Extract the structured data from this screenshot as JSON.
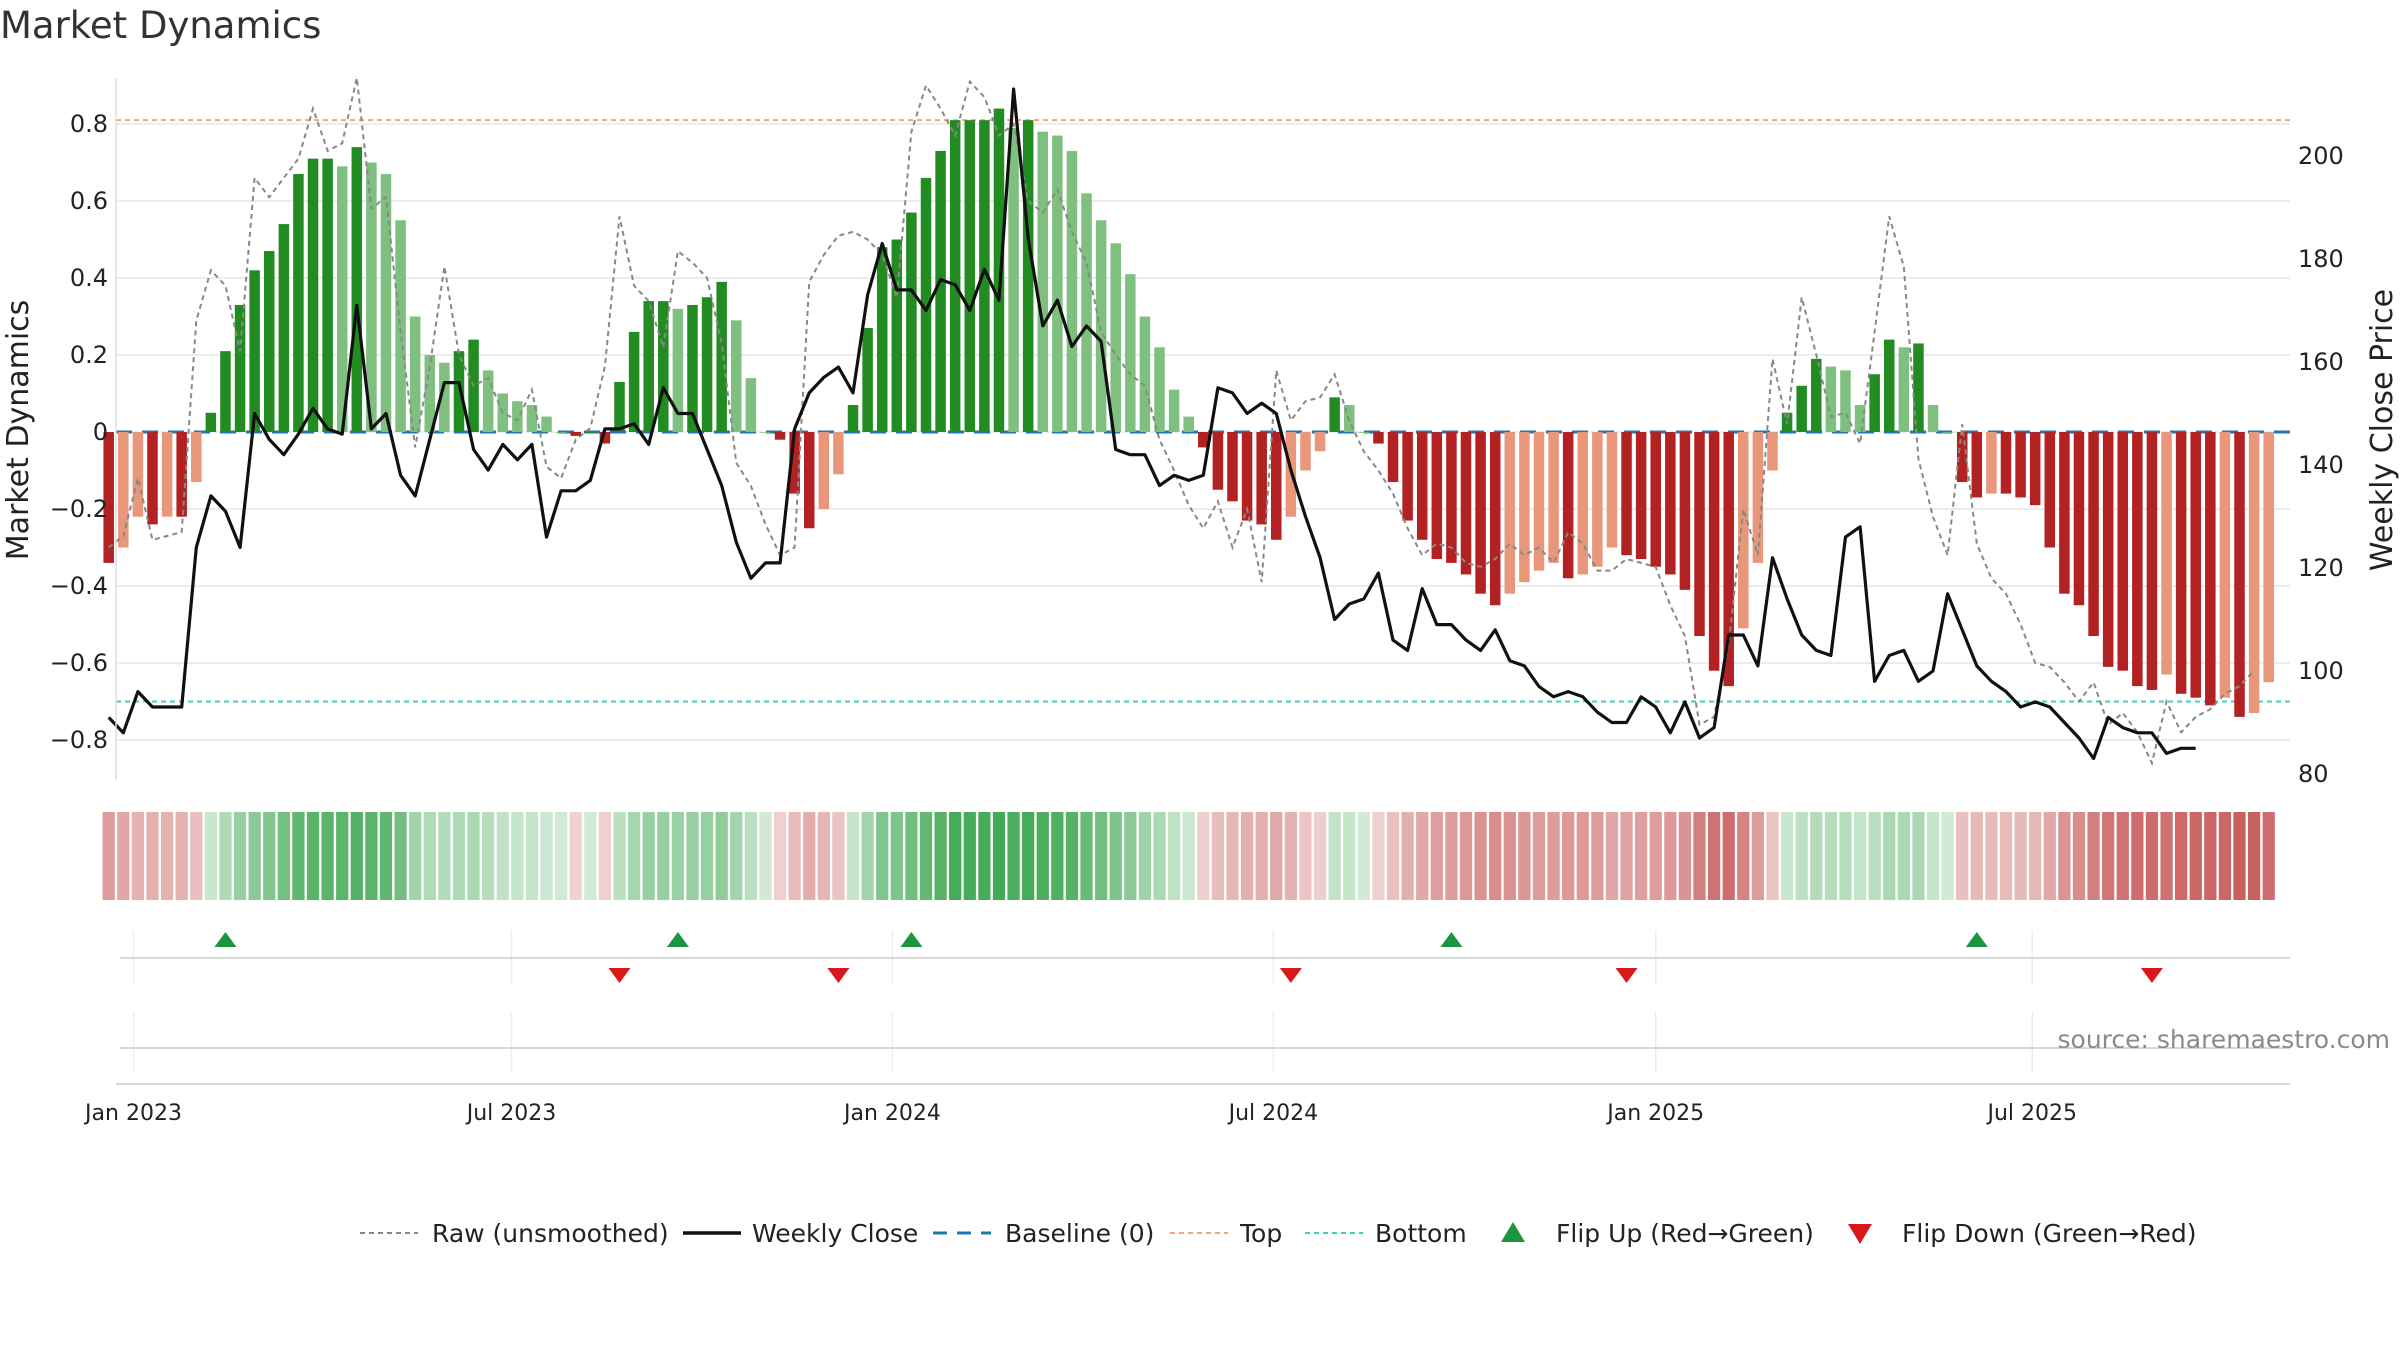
{
  "chart_data": {
    "type": "bar",
    "title": "Market Dynamics",
    "ylabel_left": "Market Dynamics",
    "ylabel_right": "Weekly Close Price",
    "y_left_lim": [
      -0.9,
      0.92
    ],
    "y_right_lim": [
      80,
      212
    ],
    "y_left_ticks": [
      "0.8",
      "0.6",
      "0.4",
      "0.2",
      "0",
      "−0.2",
      "−0.4",
      "−0.6",
      "−0.8"
    ],
    "y_left_tick_values": [
      0.8,
      0.6,
      0.4,
      0.2,
      0,
      -0.2,
      -0.4,
      -0.6,
      -0.8
    ],
    "y_right_ticks": [
      "200",
      "180",
      "160",
      "140",
      "120",
      "100",
      "80"
    ],
    "y_right_tick_values": [
      200,
      180,
      160,
      140,
      120,
      100,
      80
    ],
    "date_ticks": [
      "Jan 2023",
      "Jul 2023",
      "Jan 2024",
      "Jul 2024",
      "Jan 2025",
      "Jul 2025"
    ],
    "date_tick_weeks": [
      1.7,
      27.6,
      53.7,
      79.8,
      106.0,
      131.8
    ],
    "top_level": 0.81,
    "bottom_level": -0.7,
    "baseline": 0,
    "grid": true,
    "legend_position": "bottom-center",
    "source": "source: sharemaestro.com",
    "colors": {
      "strong_green": "#228b22",
      "light_green": "#7fbf7f",
      "strong_red": "#b22222",
      "light_red": "#e8977a",
      "top_line": "#f4a582",
      "bottom_line": "#40d0c0",
      "baseline": "#1f77b4",
      "flip_up": "#1a9641",
      "flip_down": "#d7191c",
      "close_line": "#111111",
      "raw_line": "#888888"
    },
    "dynamics": [
      -0.34,
      -0.3,
      -0.22,
      -0.24,
      -0.22,
      -0.22,
      -0.13,
      0.05,
      0.21,
      0.33,
      0.42,
      0.47,
      0.54,
      0.67,
      0.71,
      0.71,
      0.69,
      0.74,
      0.7,
      0.67,
      0.55,
      0.3,
      0.2,
      0.18,
      0.21,
      0.24,
      0.16,
      0.1,
      0.08,
      0.07,
      0.04,
      0.0,
      -0.01,
      0.0,
      -0.03,
      0.13,
      0.26,
      0.34,
      0.34,
      0.32,
      0.33,
      0.35,
      0.39,
      0.29,
      0.14,
      0.0,
      -0.02,
      -0.16,
      -0.25,
      -0.2,
      -0.11,
      0.07,
      0.27,
      0.48,
      0.5,
      0.57,
      0.66,
      0.73,
      0.81,
      0.81,
      0.81,
      0.84,
      0.79,
      0.81,
      0.78,
      0.77,
      0.73,
      0.62,
      0.55,
      0.49,
      0.41,
      0.3,
      0.22,
      0.11,
      0.04,
      -0.04,
      -0.15,
      -0.18,
      -0.23,
      -0.24,
      -0.28,
      -0.22,
      -0.1,
      -0.05,
      0.09,
      0.07,
      0.0,
      -0.03,
      -0.13,
      -0.23,
      -0.28,
      -0.33,
      -0.34,
      -0.37,
      -0.42,
      -0.45,
      -0.42,
      -0.39,
      -0.36,
      -0.34,
      -0.38,
      -0.37,
      -0.35,
      -0.3,
      -0.32,
      -0.33,
      -0.35,
      -0.37,
      -0.41,
      -0.53,
      -0.62,
      -0.66,
      -0.51,
      -0.34,
      -0.1,
      0.05,
      0.12,
      0.19,
      0.17,
      0.16,
      0.07,
      0.15,
      0.24,
      0.22,
      0.23,
      0.07,
      0.0,
      -0.13,
      -0.17,
      -0.16,
      -0.16,
      -0.17,
      -0.19,
      -0.3,
      -0.42,
      -0.45,
      -0.53,
      -0.61,
      -0.62,
      -0.66,
      -0.67,
      -0.63,
      -0.68,
      -0.69,
      -0.71,
      -0.69,
      -0.74,
      -0.73,
      -0.65
    ],
    "close_price": [
      91,
      88,
      96,
      93,
      93,
      93,
      124,
      134,
      131,
      124,
      150,
      145,
      142,
      146,
      151,
      147,
      146,
      171,
      147,
      150,
      138,
      134,
      145,
      156,
      156,
      143,
      139,
      144,
      141,
      144,
      126,
      135,
      135,
      137,
      147,
      147,
      148,
      144,
      155,
      150,
      150,
      143,
      136,
      125,
      118,
      121,
      121,
      147,
      154,
      157,
      159,
      154,
      173,
      183,
      174,
      174,
      170,
      176,
      175,
      170,
      178,
      172,
      213,
      184,
      167,
      172,
      163,
      167,
      164,
      143,
      142,
      142,
      136,
      138,
      137,
      138,
      155,
      154,
      150,
      152,
      150,
      139,
      130,
      122,
      110,
      113,
      114,
      119,
      106,
      104,
      116,
      109,
      109,
      106,
      104,
      108,
      102,
      101,
      97,
      95,
      96,
      95,
      92,
      90,
      90,
      95,
      93,
      88,
      94,
      87,
      89,
      107,
      107,
      101,
      122,
      114,
      107,
      104,
      103,
      126,
      128,
      98,
      103,
      104,
      98,
      100,
      115,
      108,
      101,
      98,
      96,
      93,
      94,
      93,
      90,
      87,
      83,
      91,
      89,
      88,
      88,
      84,
      85,
      85
    ],
    "raw": [
      -0.3,
      -0.27,
      -0.12,
      -0.28,
      -0.27,
      -0.26,
      0.29,
      0.42,
      0.38,
      0.21,
      0.66,
      0.61,
      0.66,
      0.71,
      0.84,
      0.73,
      0.75,
      0.92,
      0.58,
      0.61,
      0.26,
      -0.04,
      0.17,
      0.43,
      0.2,
      0.12,
      0.14,
      0.05,
      0.03,
      0.11,
      -0.09,
      -0.12,
      -0.02,
      0.01,
      0.17,
      0.56,
      0.38,
      0.34,
      0.22,
      0.47,
      0.44,
      0.4,
      0.23,
      -0.08,
      -0.14,
      -0.24,
      -0.32,
      -0.3,
      0.39,
      0.46,
      0.51,
      0.52,
      0.5,
      0.46,
      0.35,
      0.78,
      0.9,
      0.84,
      0.77,
      0.91,
      0.87,
      0.77,
      0.8,
      0.6,
      0.57,
      0.63,
      0.52,
      0.44,
      0.26,
      0.2,
      0.15,
      0.12,
      -0.02,
      -0.1,
      -0.19,
      -0.25,
      -0.18,
      -0.3,
      -0.2,
      -0.39,
      0.16,
      0.03,
      0.08,
      0.09,
      0.15,
      0.03,
      -0.05,
      -0.1,
      -0.16,
      -0.25,
      -0.32,
      -0.29,
      -0.3,
      -0.34,
      -0.35,
      -0.33,
      -0.29,
      -0.32,
      -0.3,
      -0.34,
      -0.26,
      -0.29,
      -0.36,
      -0.36,
      -0.33,
      -0.34,
      -0.35,
      -0.45,
      -0.53,
      -0.76,
      -0.74,
      -0.55,
      -0.2,
      -0.32,
      0.19,
      0.02,
      0.35,
      0.2,
      0.04,
      0.05,
      -0.03,
      0.26,
      0.56,
      0.43,
      -0.07,
      -0.22,
      -0.32,
      0.02,
      -0.29,
      -0.38,
      -0.42,
      -0.5,
      -0.6,
      -0.61,
      -0.65,
      -0.7,
      -0.65,
      -0.76,
      -0.73,
      -0.78,
      -0.86,
      -0.7,
      -0.78,
      -0.74,
      -0.72,
      -0.68,
      -0.66,
      -0.62
    ],
    "flips_up_weeks": [
      8,
      39,
      55,
      92,
      128
    ],
    "flips_down_weeks": [
      35,
      50,
      81,
      104,
      140
    ],
    "legend": [
      "Raw (unsmoothed)",
      "Weekly Close",
      "Baseline (0)",
      "Top",
      "Bottom",
      "Flip Up (Red→Green)",
      "Flip Down (Green→Red)"
    ]
  }
}
